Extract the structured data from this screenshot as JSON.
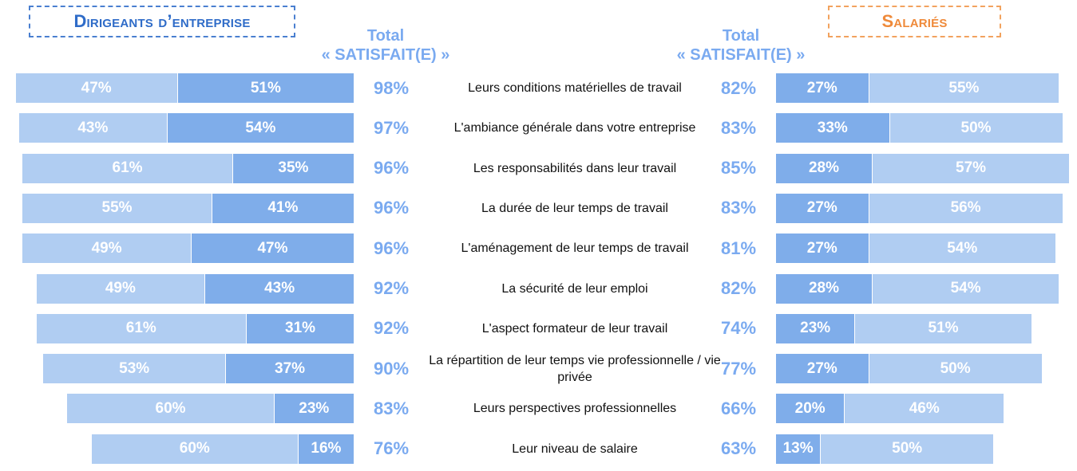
{
  "headers": {
    "left_group": "Dirigeants d’entreprise",
    "right_group": "Salariés",
    "left_total": "Total\n« SATISFAIT(E) »",
    "right_total": "Total\n«  SATISFAIT(E)  »"
  },
  "colors": {
    "light_bar": "#b0cdf2",
    "dark_bar": "#7fadea",
    "total_text": "#7aaaf0",
    "left_title": "#2f6cc8",
    "right_title": "#ef8a3a"
  },
  "chart_data": {
    "type": "bar",
    "categories": [
      "Leurs conditions matérielles de travail",
      "L'ambiance générale dans votre entreprise",
      "Les responsabilités dans leur travail",
      "La durée de leur temps de travail",
      "L'aménagement de leur temps de travail",
      "La sécurité de leur emploi",
      "L'aspect formateur de leur travail",
      "La répartition de leur temps vie professionnelle / vie privée",
      "Leurs perspectives professionnelles",
      "Leur niveau de salaire"
    ],
    "series": [
      {
        "group": "Dirigeants d’entreprise",
        "values": [
          47,
          43,
          61,
          55,
          49,
          49,
          61,
          53,
          60,
          60
        ]
      },
      {
        "group": "Dirigeants d’entreprise",
        "values": [
          51,
          54,
          35,
          41,
          47,
          43,
          31,
          37,
          23,
          16
        ]
      },
      {
        "name": "Total « SATISFAIT(E) »",
        "group": "Dirigeants d’entreprise",
        "values": [
          98,
          97,
          96,
          96,
          96,
          92,
          92,
          90,
          83,
          76
        ]
      },
      {
        "group": "Salariés",
        "values": [
          27,
          33,
          28,
          27,
          27,
          28,
          23,
          27,
          20,
          13
        ]
      },
      {
        "group": "Salariés",
        "values": [
          55,
          50,
          57,
          56,
          54,
          54,
          51,
          50,
          46,
          50
        ]
      },
      {
        "name": "Total « SATISFAIT(E) »",
        "group": "Salariés",
        "values": [
          82,
          83,
          85,
          83,
          81,
          82,
          74,
          77,
          66,
          63
        ]
      }
    ],
    "value_format": "percent"
  }
}
